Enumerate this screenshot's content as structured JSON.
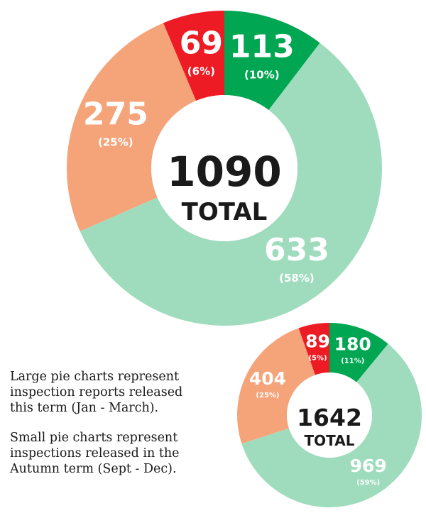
{
  "colors": {
    "green": "#00a651",
    "light_green": "#9fdcbd",
    "peach": "#f5a47a",
    "red": "#ed1c24",
    "white": "#ffffff",
    "text": "#1a1a1a"
  },
  "chart_data": [
    {
      "type": "pie",
      "variant": "donut",
      "center_value": "1090",
      "center_label": "TOTAL",
      "slices": [
        {
          "value": 113,
          "label": "113",
          "pct_label": "(10%)",
          "color": "#00a651"
        },
        {
          "value": 633,
          "label": "633",
          "pct_label": "(58%)",
          "color": "#9fdcbd"
        },
        {
          "value": 275,
          "label": "275",
          "pct_label": "(25%)",
          "color": "#f5a47a"
        },
        {
          "value": 69,
          "label": "69",
          "pct_label": "(6%)",
          "color": "#ed1c24"
        }
      ]
    },
    {
      "type": "pie",
      "variant": "donut",
      "center_value": "1642",
      "center_label": "TOTAL",
      "slices": [
        {
          "value": 180,
          "label": "180",
          "pct_label": "(11%)",
          "color": "#00a651"
        },
        {
          "value": 969,
          "label": "969",
          "pct_label": "(59%)",
          "color": "#9fdcbd"
        },
        {
          "value": 404,
          "label": "404",
          "pct_label": "(25%)",
          "color": "#f5a47a"
        },
        {
          "value": 89,
          "label": "89",
          "pct_label": "(5%)",
          "color": "#ed1c24"
        }
      ]
    }
  ],
  "caption": {
    "line1": "Large pie charts represent\ninspection reports released\nthis term (Jan - March).",
    "line2": "Small pie charts represent\ninspections released in the\nAutumn term (Sept - Dec)."
  }
}
